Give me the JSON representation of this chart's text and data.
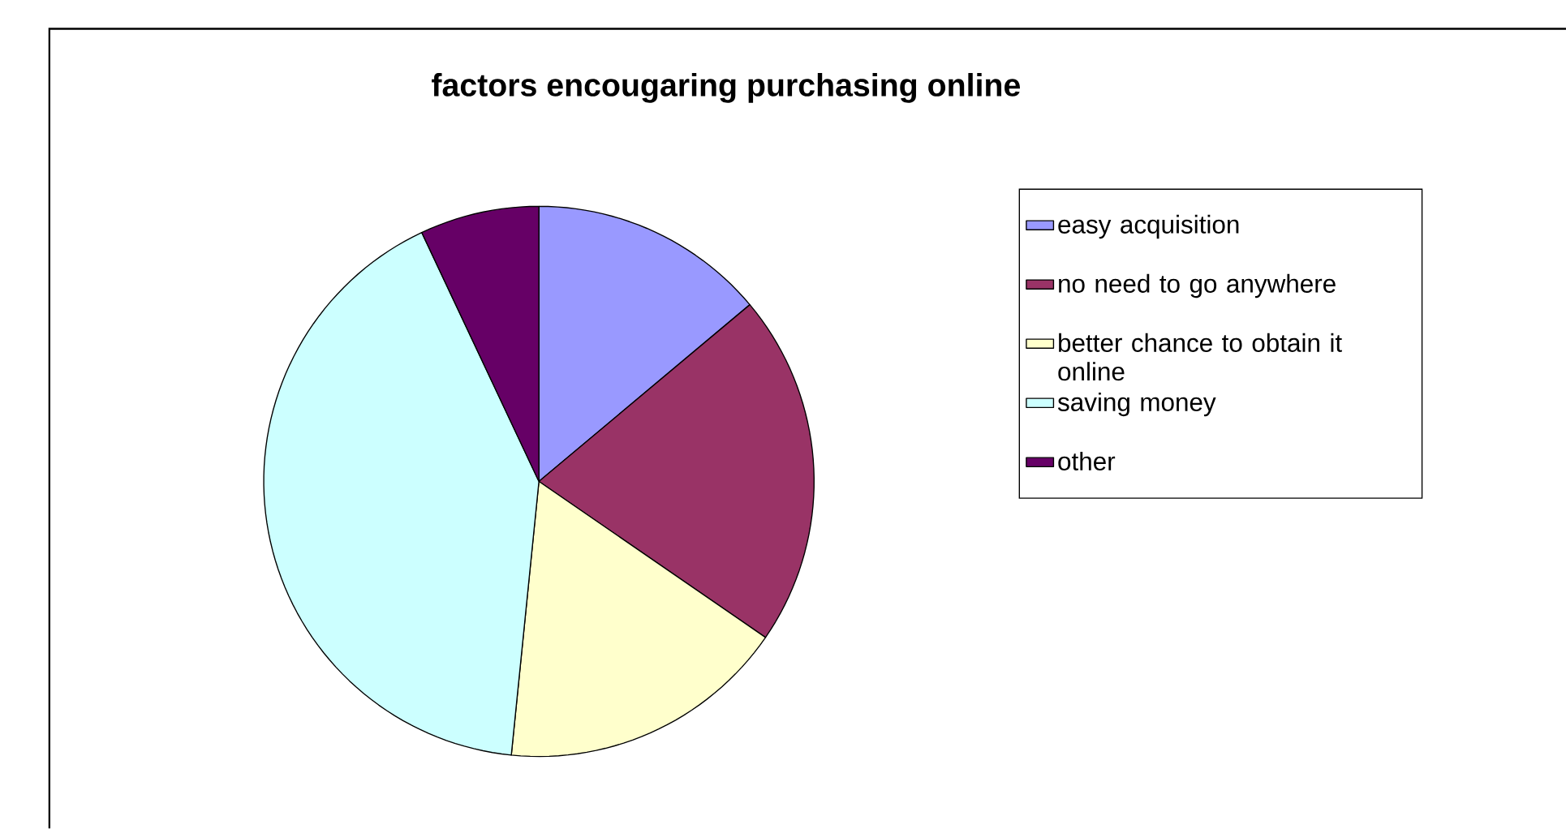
{
  "chart_data": {
    "type": "pie",
    "title": "factors encougaring purchasing online",
    "categories": [
      "easy acquisition",
      "no need to go anywhere",
      "better chance to obtain it online",
      "saving money",
      "other"
    ],
    "values": [
      13.9,
      20.7,
      17.0,
      41.4,
      7.0
    ],
    "colors": [
      "#9999ff",
      "#993366",
      "#ffffcc",
      "#ccffff",
      "#660066"
    ],
    "legend": "right"
  }
}
